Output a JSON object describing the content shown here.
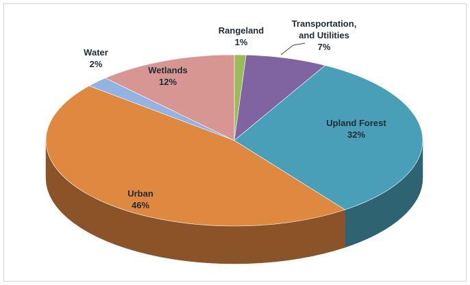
{
  "chart_data": {
    "type": "pie3d",
    "categories": [
      "Rangeland",
      "Transportation, and Utilities",
      "Upland Forest",
      "Urban",
      "Water",
      "Wetlands"
    ],
    "values": [
      1,
      7,
      32,
      46,
      2,
      12
    ],
    "value_labels": [
      "1%",
      "7%",
      "32%",
      "46%",
      "2%",
      "12%"
    ],
    "colors": [
      "#9bbb59",
      "#8064a2",
      "#4a9fb8",
      "#de8840",
      "#93b3e0",
      "#d89693"
    ]
  }
}
